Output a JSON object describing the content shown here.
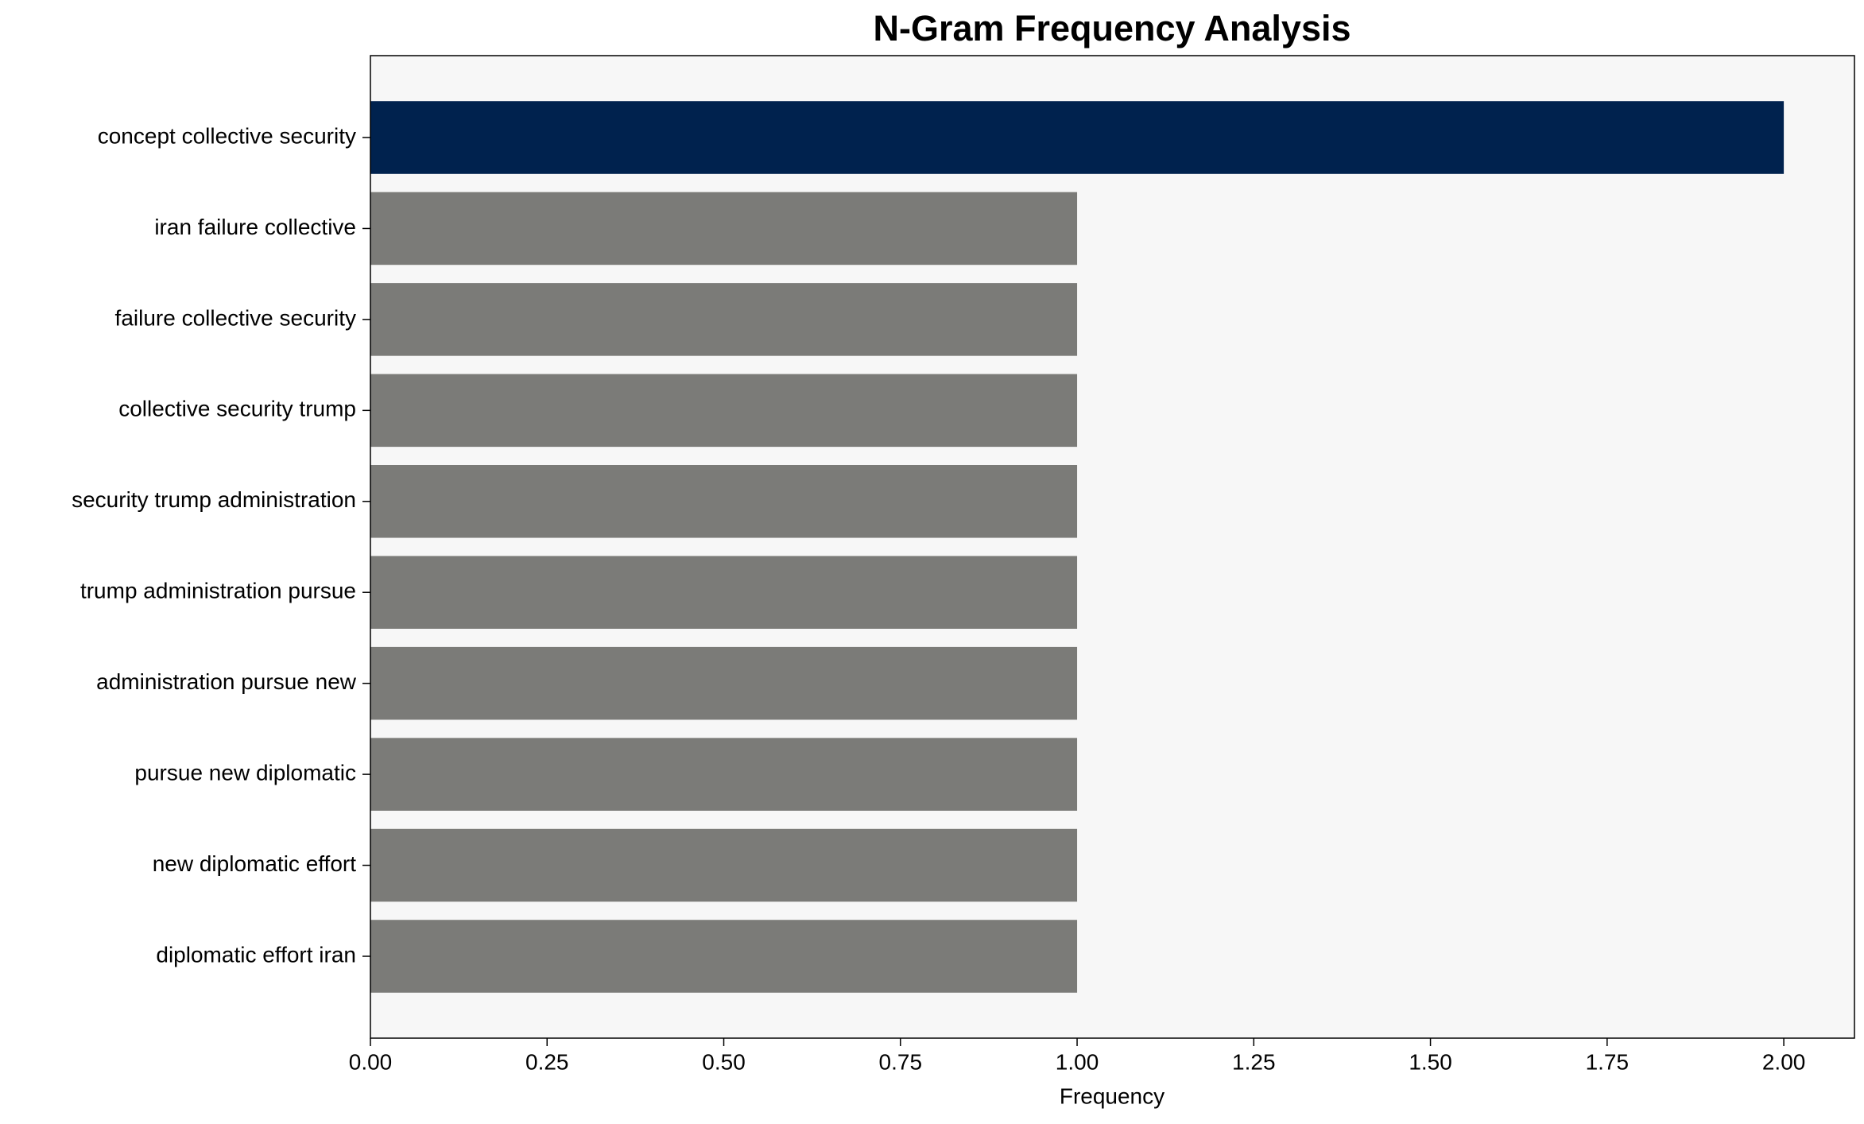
{
  "chart_data": {
    "type": "barh",
    "title": "N-Gram Frequency Analysis",
    "xlabel": "Frequency",
    "categories": [
      "concept collective security",
      "iran failure collective",
      "failure collective security",
      "collective security trump",
      "security trump administration",
      "trump administration pursue",
      "administration pursue new",
      "pursue new diplomatic",
      "new diplomatic effort",
      "diplomatic effort iran"
    ],
    "values": [
      2,
      1,
      1,
      1,
      1,
      1,
      1,
      1,
      1,
      1
    ],
    "colors": [
      "#00224e",
      "#7b7b78",
      "#7b7b78",
      "#7b7b78",
      "#7b7b78",
      "#7b7b78",
      "#7b7b78",
      "#7b7b78",
      "#7b7b78",
      "#7b7b78"
    ],
    "xlim": [
      0,
      2.1
    ],
    "xticks": [
      {
        "value": 0,
        "label": "0.00"
      },
      {
        "value": 0.25,
        "label": "0.25"
      },
      {
        "value": 0.5,
        "label": "0.50"
      },
      {
        "value": 0.75,
        "label": "0.75"
      },
      {
        "value": 1,
        "label": "1.00"
      },
      {
        "value": 1.25,
        "label": "1.25"
      },
      {
        "value": 1.5,
        "label": "1.50"
      },
      {
        "value": 1.75,
        "label": "1.75"
      },
      {
        "value": 2,
        "label": "2.00"
      }
    ],
    "grid": false
  }
}
